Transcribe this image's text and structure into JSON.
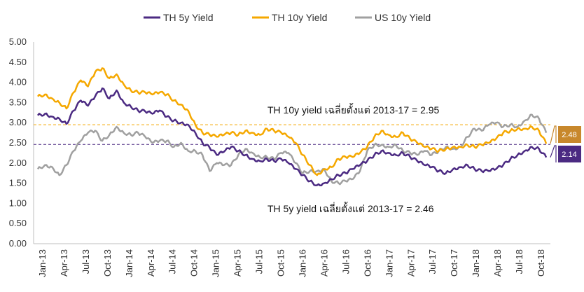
{
  "chart_data": {
    "type": "line",
    "x_ticks": [
      "Jan-13",
      "Apr-13",
      "Jul-13",
      "Oct-13",
      "Jan-14",
      "Apr-14",
      "Jul-14",
      "Oct-14",
      "Jan-15",
      "Apr-15",
      "Jul-15",
      "Oct-15",
      "Jan-16",
      "Apr-16",
      "Jul-16",
      "Oct-16",
      "Jan-17",
      "Apr-17",
      "Jul-17",
      "Oct-17",
      "Jan-18",
      "Apr-18",
      "Jul-18",
      "Oct-18"
    ],
    "x_range": [
      "2013-01",
      "2018-12"
    ],
    "ylim": [
      0,
      5
    ],
    "y_ticks": [
      "0.00",
      "0.50",
      "1.00",
      "1.50",
      "2.00",
      "2.50",
      "3.00",
      "3.50",
      "4.00",
      "4.50",
      "5.00"
    ],
    "grid": false,
    "legend_position": "top",
    "series": [
      {
        "name": "TH 5y Yield",
        "color": "#4b2a82",
        "points": [
          [
            "2013-01",
            3.18
          ],
          [
            "2013-02",
            3.22
          ],
          [
            "2013-03",
            3.15
          ],
          [
            "2013-04",
            3.1
          ],
          [
            "2013-05",
            2.97
          ],
          [
            "2013-06",
            3.3
          ],
          [
            "2013-07",
            3.55
          ],
          [
            "2013-08",
            3.42
          ],
          [
            "2013-09",
            3.65
          ],
          [
            "2013-10",
            3.85
          ],
          [
            "2013-11",
            3.6
          ],
          [
            "2013-12",
            3.8
          ],
          [
            "2014-01",
            3.5
          ],
          [
            "2014-02",
            3.4
          ],
          [
            "2014-03",
            3.3
          ],
          [
            "2014-04",
            3.28
          ],
          [
            "2014-05",
            3.22
          ],
          [
            "2014-06",
            3.3
          ],
          [
            "2014-07",
            3.15
          ],
          [
            "2014-08",
            3.05
          ],
          [
            "2014-09",
            3.0
          ],
          [
            "2014-10",
            2.95
          ],
          [
            "2014-11",
            2.75
          ],
          [
            "2014-12",
            2.5
          ],
          [
            "2015-01",
            2.38
          ],
          [
            "2015-02",
            2.2
          ],
          [
            "2015-03",
            2.28
          ],
          [
            "2015-04",
            2.4
          ],
          [
            "2015-05",
            2.3
          ],
          [
            "2015-06",
            2.2
          ],
          [
            "2015-07",
            2.1
          ],
          [
            "2015-08",
            2.05
          ],
          [
            "2015-09",
            2.1
          ],
          [
            "2015-10",
            2.05
          ],
          [
            "2015-11",
            2.1
          ],
          [
            "2015-12",
            2.0
          ],
          [
            "2016-01",
            1.85
          ],
          [
            "2016-02",
            1.7
          ],
          [
            "2016-03",
            1.55
          ],
          [
            "2016-04",
            1.45
          ],
          [
            "2016-05",
            1.5
          ],
          [
            "2016-06",
            1.6
          ],
          [
            "2016-07",
            1.7
          ],
          [
            "2016-08",
            1.75
          ],
          [
            "2016-09",
            1.85
          ],
          [
            "2016-10",
            1.95
          ],
          [
            "2016-11",
            2.05
          ],
          [
            "2016-12",
            2.2
          ],
          [
            "2017-01",
            2.3
          ],
          [
            "2017-02",
            2.25
          ],
          [
            "2017-03",
            2.2
          ],
          [
            "2017-04",
            2.25
          ],
          [
            "2017-05",
            2.15
          ],
          [
            "2017-06",
            2.05
          ],
          [
            "2017-07",
            1.95
          ],
          [
            "2017-08",
            1.9
          ],
          [
            "2017-09",
            1.8
          ],
          [
            "2017-10",
            1.75
          ],
          [
            "2017-11",
            1.85
          ],
          [
            "2017-12",
            1.9
          ],
          [
            "2018-01",
            1.95
          ],
          [
            "2018-02",
            1.85
          ],
          [
            "2018-03",
            1.8
          ],
          [
            "2018-04",
            1.8
          ],
          [
            "2018-05",
            1.85
          ],
          [
            "2018-06",
            1.95
          ],
          [
            "2018-07",
            2.1
          ],
          [
            "2018-08",
            2.2
          ],
          [
            "2018-09",
            2.3
          ],
          [
            "2018-10",
            2.4
          ],
          [
            "2018-11",
            2.35
          ],
          [
            "2018-12",
            2.14
          ]
        ]
      },
      {
        "name": "TH 10y Yield",
        "color": "#f5a800",
        "points": [
          [
            "2013-01",
            3.65
          ],
          [
            "2013-02",
            3.7
          ],
          [
            "2013-03",
            3.6
          ],
          [
            "2013-04",
            3.5
          ],
          [
            "2013-05",
            3.35
          ],
          [
            "2013-06",
            3.75
          ],
          [
            "2013-07",
            4.05
          ],
          [
            "2013-08",
            3.9
          ],
          [
            "2013-09",
            4.25
          ],
          [
            "2013-10",
            4.35
          ],
          [
            "2013-11",
            4.1
          ],
          [
            "2013-12",
            4.2
          ],
          [
            "2014-01",
            3.95
          ],
          [
            "2014-02",
            3.8
          ],
          [
            "2014-03",
            3.75
          ],
          [
            "2014-04",
            3.75
          ],
          [
            "2014-05",
            3.7
          ],
          [
            "2014-06",
            3.75
          ],
          [
            "2014-07",
            3.7
          ],
          [
            "2014-08",
            3.55
          ],
          [
            "2014-09",
            3.45
          ],
          [
            "2014-10",
            3.3
          ],
          [
            "2014-11",
            2.95
          ],
          [
            "2014-12",
            2.75
          ],
          [
            "2015-01",
            2.7
          ],
          [
            "2015-02",
            2.65
          ],
          [
            "2015-03",
            2.7
          ],
          [
            "2015-04",
            2.75
          ],
          [
            "2015-05",
            2.7
          ],
          [
            "2015-06",
            2.8
          ],
          [
            "2015-07",
            2.75
          ],
          [
            "2015-08",
            2.7
          ],
          [
            "2015-09",
            2.85
          ],
          [
            "2015-10",
            2.8
          ],
          [
            "2015-11",
            2.75
          ],
          [
            "2015-12",
            2.65
          ],
          [
            "2016-01",
            2.5
          ],
          [
            "2016-02",
            2.2
          ],
          [
            "2016-03",
            1.95
          ],
          [
            "2016-04",
            1.7
          ],
          [
            "2016-05",
            1.85
          ],
          [
            "2016-06",
            1.9
          ],
          [
            "2016-07",
            2.1
          ],
          [
            "2016-08",
            2.15
          ],
          [
            "2016-09",
            2.15
          ],
          [
            "2016-10",
            2.25
          ],
          [
            "2016-11",
            2.4
          ],
          [
            "2016-12",
            2.65
          ],
          [
            "2017-01",
            2.8
          ],
          [
            "2017-02",
            2.7
          ],
          [
            "2017-03",
            2.65
          ],
          [
            "2017-04",
            2.75
          ],
          [
            "2017-05",
            2.6
          ],
          [
            "2017-06",
            2.5
          ],
          [
            "2017-07",
            2.4
          ],
          [
            "2017-08",
            2.35
          ],
          [
            "2017-09",
            2.3
          ],
          [
            "2017-10",
            2.35
          ],
          [
            "2017-11",
            2.4
          ],
          [
            "2017-12",
            2.4
          ],
          [
            "2018-01",
            2.45
          ],
          [
            "2018-02",
            2.4
          ],
          [
            "2018-03",
            2.45
          ],
          [
            "2018-04",
            2.5
          ],
          [
            "2018-05",
            2.6
          ],
          [
            "2018-06",
            2.75
          ],
          [
            "2018-07",
            2.8
          ],
          [
            "2018-08",
            2.85
          ],
          [
            "2018-09",
            2.85
          ],
          [
            "2018-10",
            2.9
          ],
          [
            "2018-11",
            2.8
          ],
          [
            "2018-12",
            2.48
          ]
        ]
      },
      {
        "name": "US 10y Yield",
        "color": "#a0a0a0",
        "points": [
          [
            "2013-01",
            1.85
          ],
          [
            "2013-02",
            1.95
          ],
          [
            "2013-03",
            1.9
          ],
          [
            "2013-04",
            1.7
          ],
          [
            "2013-05",
            1.95
          ],
          [
            "2013-06",
            2.3
          ],
          [
            "2013-07",
            2.55
          ],
          [
            "2013-08",
            2.75
          ],
          [
            "2013-09",
            2.8
          ],
          [
            "2013-10",
            2.55
          ],
          [
            "2013-11",
            2.7
          ],
          [
            "2013-12",
            2.9
          ],
          [
            "2014-01",
            2.75
          ],
          [
            "2014-02",
            2.7
          ],
          [
            "2014-03",
            2.75
          ],
          [
            "2014-04",
            2.65
          ],
          [
            "2014-05",
            2.5
          ],
          [
            "2014-06",
            2.55
          ],
          [
            "2014-07",
            2.55
          ],
          [
            "2014-08",
            2.4
          ],
          [
            "2014-09",
            2.5
          ],
          [
            "2014-10",
            2.3
          ],
          [
            "2014-11",
            2.3
          ],
          [
            "2014-12",
            2.2
          ],
          [
            "2015-01",
            1.8
          ],
          [
            "2015-02",
            2.0
          ],
          [
            "2015-03",
            1.95
          ],
          [
            "2015-04",
            1.95
          ],
          [
            "2015-05",
            2.2
          ],
          [
            "2015-06",
            2.35
          ],
          [
            "2015-07",
            2.25
          ],
          [
            "2015-08",
            2.15
          ],
          [
            "2015-09",
            2.15
          ],
          [
            "2015-10",
            2.1
          ],
          [
            "2015-11",
            2.25
          ],
          [
            "2015-12",
            2.25
          ],
          [
            "2016-01",
            2.0
          ],
          [
            "2016-02",
            1.75
          ],
          [
            "2016-03",
            1.8
          ],
          [
            "2016-04",
            1.8
          ],
          [
            "2016-05",
            1.85
          ],
          [
            "2016-06",
            1.55
          ],
          [
            "2016-07",
            1.5
          ],
          [
            "2016-08",
            1.55
          ],
          [
            "2016-09",
            1.6
          ],
          [
            "2016-10",
            1.8
          ],
          [
            "2016-11",
            2.3
          ],
          [
            "2016-12",
            2.45
          ],
          [
            "2017-01",
            2.45
          ],
          [
            "2017-02",
            2.4
          ],
          [
            "2017-03",
            2.45
          ],
          [
            "2017-04",
            2.3
          ],
          [
            "2017-05",
            2.25
          ],
          [
            "2017-06",
            2.2
          ],
          [
            "2017-07",
            2.3
          ],
          [
            "2017-08",
            2.2
          ],
          [
            "2017-09",
            2.3
          ],
          [
            "2017-10",
            2.4
          ],
          [
            "2017-11",
            2.35
          ],
          [
            "2017-12",
            2.4
          ],
          [
            "2018-01",
            2.65
          ],
          [
            "2018-02",
            2.85
          ],
          [
            "2018-03",
            2.8
          ],
          [
            "2018-04",
            2.95
          ],
          [
            "2018-05",
            3.0
          ],
          [
            "2018-06",
            2.9
          ],
          [
            "2018-07",
            2.95
          ],
          [
            "2018-08",
            2.9
          ],
          [
            "2018-09",
            3.05
          ],
          [
            "2018-10",
            3.2
          ],
          [
            "2018-11",
            3.1
          ],
          [
            "2018-12",
            2.75
          ]
        ]
      }
    ],
    "reference_lines": [
      {
        "value": 2.95,
        "color": "#f5a800",
        "label": "TH 10y yield เฉลี่ยตั้งแต่ 2013-17 = 2.95"
      },
      {
        "value": 2.46,
        "color": "#4b2a82",
        "label": "TH 5y yield เฉลี่ยตั้งแต่ 2013-17 = 2.46"
      }
    ],
    "end_badges": [
      {
        "value": 2.48,
        "label": "2.48",
        "color": "#c8882c"
      },
      {
        "value": 2.14,
        "label": "2.14",
        "color": "#4b2a82"
      }
    ]
  }
}
